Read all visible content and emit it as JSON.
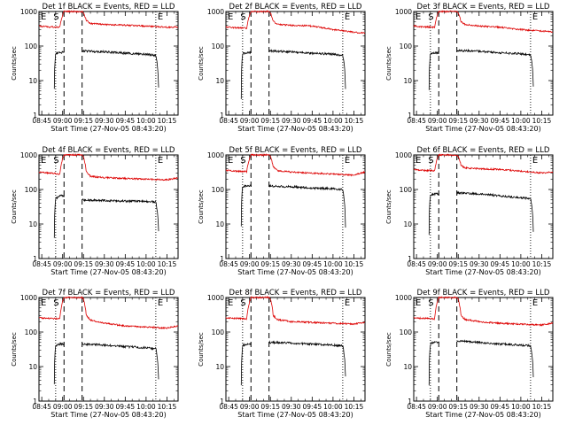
{
  "figure": {
    "xlabel_template": "Start Time (27-Nov-05 08:43:20)",
    "ylabel": "Counts/sec",
    "xticks": [
      "08:45",
      "09:00",
      "09:15",
      "09:30",
      "09:45",
      "10:00",
      "10:15"
    ],
    "yticks": [
      "1",
      "10",
      "100",
      "1000"
    ],
    "marker_E": "E",
    "marker_S": "S",
    "colors": {
      "events": "#000000",
      "lld": "#dd0000",
      "axes": "#000000"
    }
  },
  "chart_data": [
    {
      "type": "line",
      "title": "Det 1f BLACK = Events, RED = LLD",
      "xlabel": "Start Time (27-Nov-05 08:43:20)",
      "ylabel": "Counts/sec",
      "xlim": [
        "08:43",
        "10:23"
      ],
      "ylim": [
        1,
        1000
      ],
      "yscale": "log",
      "series": [
        {
          "name": "Events",
          "color": "#000000",
          "x": [
            "08:54",
            "08:55",
            "08:56",
            "08:58",
            "09:01",
            "09:14",
            "09:15",
            "09:30",
            "09:45",
            "10:00",
            "10:07",
            "10:09"
          ],
          "values": [
            6,
            60,
            62,
            65,
            65,
            72,
            72,
            68,
            62,
            58,
            54,
            6
          ]
        },
        {
          "name": "LLD",
          "color": "#dd0000",
          "x": [
            "08:43",
            "08:50",
            "08:58",
            "09:01",
            "09:14",
            "09:15",
            "09:17",
            "09:20",
            "09:30",
            "09:45",
            "10:00",
            "10:15",
            "10:23"
          ],
          "values": [
            380,
            360,
            350,
            1000,
            1000,
            900,
            550,
            450,
            420,
            400,
            380,
            350,
            360
          ]
        }
      ],
      "markers": {
        "dotted": [
          "08:55",
          "10:07"
        ],
        "dashed": [
          "09:01",
          "09:14"
        ]
      }
    },
    {
      "type": "line",
      "title": "Det 2f BLACK = Events, RED = LLD",
      "xlabel": "Start Time (27-Nov-05 08:43:20)",
      "ylabel": "Counts/sec",
      "xlim": [
        "08:43",
        "10:23"
      ],
      "ylim": [
        1,
        1000
      ],
      "yscale": "log",
      "series": [
        {
          "name": "Events",
          "color": "#000000",
          "x": [
            "08:54",
            "08:55",
            "08:56",
            "08:58",
            "09:01",
            "09:14",
            "09:15",
            "09:30",
            "09:45",
            "10:00",
            "10:07",
            "10:09"
          ],
          "values": [
            3,
            60,
            62,
            65,
            65,
            72,
            72,
            68,
            62,
            58,
            54,
            6
          ]
        },
        {
          "name": "LLD",
          "color": "#dd0000",
          "x": [
            "08:43",
            "08:50",
            "08:58",
            "09:01",
            "09:14",
            "09:15",
            "09:17",
            "09:20",
            "09:30",
            "09:45",
            "10:00",
            "10:15",
            "10:23"
          ],
          "values": [
            360,
            340,
            330,
            1000,
            1000,
            900,
            520,
            430,
            400,
            380,
            300,
            250,
            240
          ]
        }
      ],
      "markers": {
        "dotted": [
          "08:55",
          "10:07"
        ],
        "dashed": [
          "09:01",
          "09:14"
        ]
      }
    },
    {
      "type": "line",
      "title": "Det 3f BLACK = Events, RED = LLD",
      "xlabel": "Start Time (27-Nov-05 08:43:20)",
      "ylabel": "Counts/sec",
      "xlim": [
        "08:43",
        "10:23"
      ],
      "ylim": [
        1,
        1000
      ],
      "yscale": "log",
      "series": [
        {
          "name": "Events",
          "color": "#000000",
          "x": [
            "08:54",
            "08:55",
            "08:56",
            "08:58",
            "09:01",
            "09:14",
            "09:15",
            "09:30",
            "09:45",
            "10:00",
            "10:07",
            "10:09"
          ],
          "values": [
            5,
            60,
            62,
            65,
            65,
            75,
            75,
            70,
            64,
            60,
            56,
            7
          ]
        },
        {
          "name": "LLD",
          "color": "#dd0000",
          "x": [
            "08:43",
            "08:50",
            "08:58",
            "09:01",
            "09:14",
            "09:15",
            "09:17",
            "09:20",
            "09:30",
            "09:45",
            "10:00",
            "10:15",
            "10:23"
          ],
          "values": [
            380,
            360,
            350,
            1000,
            1000,
            900,
            500,
            420,
            380,
            350,
            300,
            270,
            260
          ]
        }
      ],
      "markers": {
        "dotted": [
          "08:55",
          "10:07"
        ],
        "dashed": [
          "09:01",
          "09:14"
        ]
      }
    },
    {
      "type": "line",
      "title": "Det 4f BLACK = Events, RED = LLD",
      "xlabel": "Start Time (27-Nov-05 08:43:20)",
      "ylabel": "Counts/sec",
      "xlim": [
        "08:43",
        "10:23"
      ],
      "ylim": [
        1,
        1000
      ],
      "yscale": "log",
      "series": [
        {
          "name": "Events",
          "color": "#000000",
          "x": [
            "08:54",
            "08:55",
            "08:56",
            "08:58",
            "09:01",
            "09:14",
            "09:15",
            "09:30",
            "09:45",
            "10:00",
            "10:07",
            "10:09"
          ],
          "values": [
            4,
            55,
            58,
            65,
            65,
            50,
            50,
            48,
            46,
            45,
            44,
            6
          ]
        },
        {
          "name": "LLD",
          "color": "#dd0000",
          "x": [
            "08:43",
            "08:50",
            "08:58",
            "09:01",
            "09:14",
            "09:15",
            "09:17",
            "09:20",
            "09:30",
            "09:45",
            "10:00",
            "10:15",
            "10:23"
          ],
          "values": [
            320,
            300,
            280,
            1000,
            1000,
            900,
            320,
            240,
            220,
            210,
            200,
            190,
            220
          ]
        }
      ],
      "markers": {
        "dotted": [
          "08:55",
          "10:07"
        ],
        "dashed": [
          "09:01",
          "09:14"
        ]
      }
    },
    {
      "type": "line",
      "title": "Det 5f BLACK = Events, RED = LLD",
      "xlabel": "Start Time (27-Nov-05 08:43:20)",
      "ylabel": "Counts/sec",
      "xlim": [
        "08:43",
        "10:23"
      ],
      "ylim": [
        1,
        1000
      ],
      "yscale": "log",
      "series": [
        {
          "name": "Events",
          "color": "#000000",
          "x": [
            "08:54",
            "08:55",
            "08:56",
            "08:58",
            "09:01",
            "09:14",
            "09:15",
            "09:30",
            "09:45",
            "10:00",
            "10:07",
            "10:09"
          ],
          "values": [
            8,
            120,
            125,
            130,
            130,
            125,
            125,
            120,
            110,
            105,
            100,
            8
          ]
        },
        {
          "name": "LLD",
          "color": "#dd0000",
          "x": [
            "08:43",
            "08:50",
            "08:58",
            "09:01",
            "09:14",
            "09:15",
            "09:17",
            "09:20",
            "09:30",
            "09:45",
            "10:00",
            "10:15",
            "10:23"
          ],
          "values": [
            360,
            340,
            330,
            1000,
            1000,
            900,
            450,
            350,
            320,
            300,
            280,
            260,
            320
          ]
        }
      ],
      "markers": {
        "dotted": [
          "08:55",
          "10:07"
        ],
        "dashed": [
          "09:01",
          "09:14"
        ]
      }
    },
    {
      "type": "line",
      "title": "Det 6f BLACK = Events, RED = LLD",
      "xlabel": "Start Time (27-Nov-05 08:43:20)",
      "ylabel": "Counts/sec",
      "xlim": [
        "08:43",
        "10:23"
      ],
      "ylim": [
        1,
        1000
      ],
      "yscale": "log",
      "series": [
        {
          "name": "Events",
          "color": "#000000",
          "x": [
            "08:54",
            "08:55",
            "08:56",
            "08:58",
            "09:01",
            "09:14",
            "09:15",
            "09:30",
            "09:45",
            "10:00",
            "10:07",
            "10:09"
          ],
          "values": [
            5,
            70,
            72,
            75,
            75,
            80,
            80,
            75,
            65,
            58,
            54,
            6
          ]
        },
        {
          "name": "LLD",
          "color": "#dd0000",
          "x": [
            "08:43",
            "08:50",
            "08:58",
            "09:01",
            "09:14",
            "09:15",
            "09:17",
            "09:20",
            "09:30",
            "09:45",
            "10:00",
            "10:15",
            "10:23"
          ],
          "values": [
            380,
            360,
            350,
            1000,
            1000,
            900,
            500,
            420,
            400,
            380,
            340,
            300,
            320
          ]
        }
      ],
      "markers": {
        "dotted": [
          "08:55",
          "10:07"
        ],
        "dashed": [
          "09:01",
          "09:14"
        ]
      }
    },
    {
      "type": "line",
      "title": "Det 7f BLACK = Events, RED = LLD",
      "xlabel": "Start Time (27-Nov-05 08:43:20)",
      "ylabel": "Counts/sec",
      "xlim": [
        "08:43",
        "10:23"
      ],
      "ylim": [
        1,
        1000
      ],
      "yscale": "log",
      "series": [
        {
          "name": "Events",
          "color": "#000000",
          "x": [
            "08:54",
            "08:55",
            "08:56",
            "08:58",
            "09:01",
            "09:14",
            "09:15",
            "09:30",
            "09:45",
            "10:00",
            "10:07",
            "10:09"
          ],
          "values": [
            3,
            40,
            42,
            45,
            45,
            45,
            45,
            42,
            38,
            35,
            33,
            4
          ]
        },
        {
          "name": "LLD",
          "color": "#dd0000",
          "x": [
            "08:43",
            "08:50",
            "08:58",
            "09:01",
            "09:14",
            "09:15",
            "09:17",
            "09:20",
            "09:30",
            "09:45",
            "10:00",
            "10:15",
            "10:23"
          ],
          "values": [
            260,
            250,
            240,
            1000,
            1000,
            900,
            300,
            220,
            180,
            150,
            140,
            130,
            150
          ]
        }
      ],
      "markers": {
        "dotted": [
          "08:55",
          "10:07"
        ],
        "dashed": [
          "09:01",
          "09:14"
        ]
      }
    },
    {
      "type": "line",
      "title": "Det 8f BLACK = Events, RED = LLD",
      "xlabel": "Start Time (27-Nov-05 08:43:20)",
      "ylabel": "Counts/sec",
      "xlim": [
        "08:43",
        "10:23"
      ],
      "ylim": [
        1,
        1000
      ],
      "yscale": "log",
      "series": [
        {
          "name": "Events",
          "color": "#000000",
          "x": [
            "08:54",
            "08:55",
            "08:56",
            "08:58",
            "09:01",
            "09:14",
            "09:15",
            "09:30",
            "09:45",
            "10:00",
            "10:07",
            "10:09"
          ],
          "values": [
            3,
            40,
            42,
            45,
            45,
            50,
            50,
            48,
            45,
            42,
            40,
            5
          ]
        },
        {
          "name": "LLD",
          "color": "#dd0000",
          "x": [
            "08:43",
            "08:50",
            "08:58",
            "09:01",
            "09:14",
            "09:15",
            "09:17",
            "09:20",
            "09:30",
            "09:45",
            "10:00",
            "10:15",
            "10:23"
          ],
          "values": [
            260,
            250,
            240,
            1000,
            1000,
            900,
            300,
            230,
            200,
            190,
            180,
            170,
            190
          ]
        }
      ],
      "markers": {
        "dotted": [
          "08:55",
          "10:07"
        ],
        "dashed": [
          "09:01",
          "09:14"
        ]
      }
    },
    {
      "type": "line",
      "title": "Det 9f BLACK = Events, RED = LLD",
      "xlabel": "Start Time (27-Nov-05 08:43:20)",
      "ylabel": "Counts/sec",
      "xlim": [
        "08:43",
        "10:23"
      ],
      "ylim": [
        1,
        1000
      ],
      "yscale": "log",
      "series": [
        {
          "name": "Events",
          "color": "#000000",
          "x": [
            "08:54",
            "08:55",
            "08:56",
            "08:58",
            "09:01",
            "09:14",
            "09:15",
            "09:30",
            "09:45",
            "10:00",
            "10:07",
            "10:09"
          ],
          "values": [
            3,
            45,
            48,
            50,
            50,
            55,
            55,
            50,
            45,
            42,
            40,
            5
          ]
        },
        {
          "name": "LLD",
          "color": "#dd0000",
          "x": [
            "08:43",
            "08:50",
            "08:58",
            "09:01",
            "09:14",
            "09:15",
            "09:17",
            "09:20",
            "09:30",
            "09:45",
            "10:00",
            "10:15",
            "10:23"
          ],
          "values": [
            260,
            250,
            240,
            1000,
            1000,
            900,
            300,
            230,
            200,
            180,
            170,
            160,
            180
          ]
        }
      ],
      "markers": {
        "dotted": [
          "08:55",
          "10:07"
        ],
        "dashed": [
          "09:01",
          "09:14"
        ]
      }
    }
  ]
}
